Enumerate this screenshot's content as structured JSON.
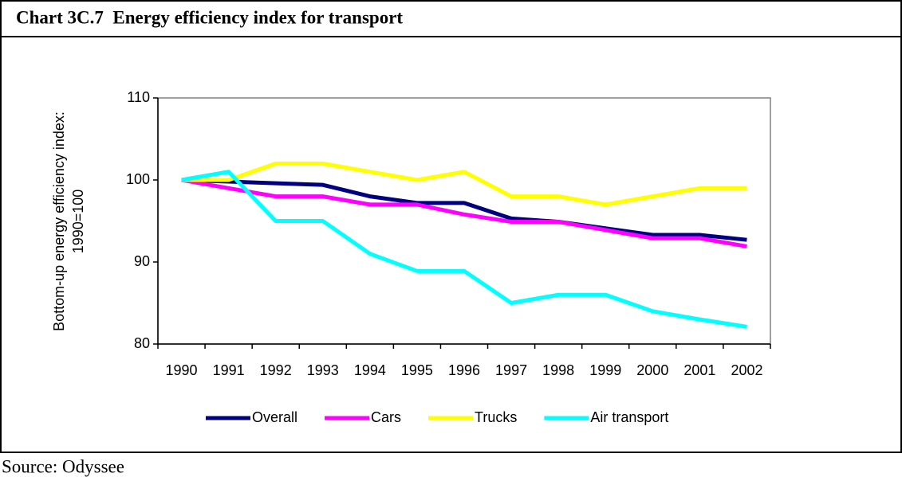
{
  "chart_data": {
    "type": "line",
    "title": "Chart 3C.7  Energy efficiency index for transport",
    "ylabel": [
      "Bottom-up energy efficiency index:",
      "1990=100"
    ],
    "source": "Source: Odyssee",
    "categories": [
      "1990",
      "1991",
      "1992",
      "1993",
      "1994",
      "1995",
      "1996",
      "1997",
      "1998",
      "1999",
      "2000",
      "2001",
      "2002"
    ],
    "series": [
      {
        "name": "Overall",
        "color": "#000080",
        "values": [
          100,
          99.8,
          99.6,
          99.4,
          98,
          97.2,
          97.2,
          95.3,
          94.9,
          94.1,
          93.3,
          93.3,
          92.7
        ]
      },
      {
        "name": "Cars",
        "color": "#ff00ff",
        "values": [
          100,
          99,
          98,
          98,
          97,
          97,
          95.8,
          94.9,
          94.9,
          93.9,
          92.9,
          92.9,
          91.9
        ]
      },
      {
        "name": "Trucks",
        "color": "#ffff00",
        "values": [
          100,
          100,
          102,
          102,
          101,
          100,
          101,
          98,
          98,
          97,
          98,
          99,
          99
        ]
      },
      {
        "name": "Air transport",
        "color": "#00ffff",
        "values": [
          100,
          101,
          95,
          95,
          91,
          88.9,
          88.9,
          85,
          86,
          86,
          84,
          83,
          82.1
        ]
      }
    ],
    "ylim": [
      80,
      110
    ],
    "yticks": [
      80,
      90,
      100,
      110
    ],
    "legend": "bottom"
  }
}
